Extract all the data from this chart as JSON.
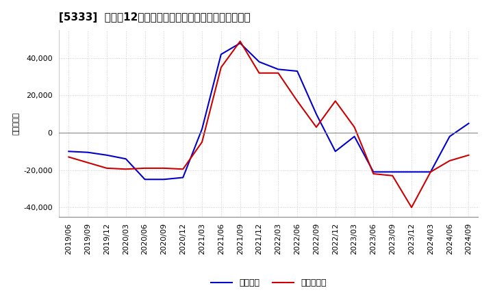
{
  "title": "[5333]  利益の12か月移動合計の対前年同期増減額の推移",
  "ylabel": "（百万円）",
  "ylim": [
    -45000,
    55000
  ],
  "yticks": [
    -40000,
    -20000,
    0,
    20000,
    40000
  ],
  "legend_labels": [
    "経常利益",
    "当期純利益"
  ],
  "line_colors": [
    "#0000cc",
    "#cc0000"
  ],
  "dates": [
    "2019/06",
    "2019/09",
    "2019/12",
    "2020/03",
    "2020/06",
    "2020/09",
    "2020/12",
    "2021/03",
    "2021/06",
    "2021/09",
    "2021/12",
    "2022/03",
    "2022/06",
    "2022/09",
    "2022/12",
    "2023/03",
    "2023/06",
    "2023/09",
    "2023/12",
    "2024/03",
    "2024/06",
    "2024/09"
  ],
  "keijo_rieki": [
    -10000,
    -10500,
    -12000,
    -14000,
    -25000,
    -25000,
    -24000,
    2000,
    42000,
    48000,
    38000,
    34000,
    33000,
    10000,
    -10000,
    -2000,
    -21000,
    -21000,
    -21000,
    -21000,
    -2000,
    5000
  ],
  "toki_junrieki": [
    -13000,
    -16000,
    -19000,
    -19500,
    -19000,
    -19000,
    -19500,
    -5000,
    35000,
    49000,
    32000,
    32000,
    17000,
    3000,
    17000,
    3000,
    -22000,
    -23000,
    -40000,
    -21000,
    -15000,
    -12000
  ],
  "background_color": "#ffffff",
  "grid_color": "#cccccc",
  "grid_style": "dotted",
  "title_fontsize": 11,
  "tick_fontsize": 8,
  "legend_fontsize": 9,
  "line_width": 1.5
}
